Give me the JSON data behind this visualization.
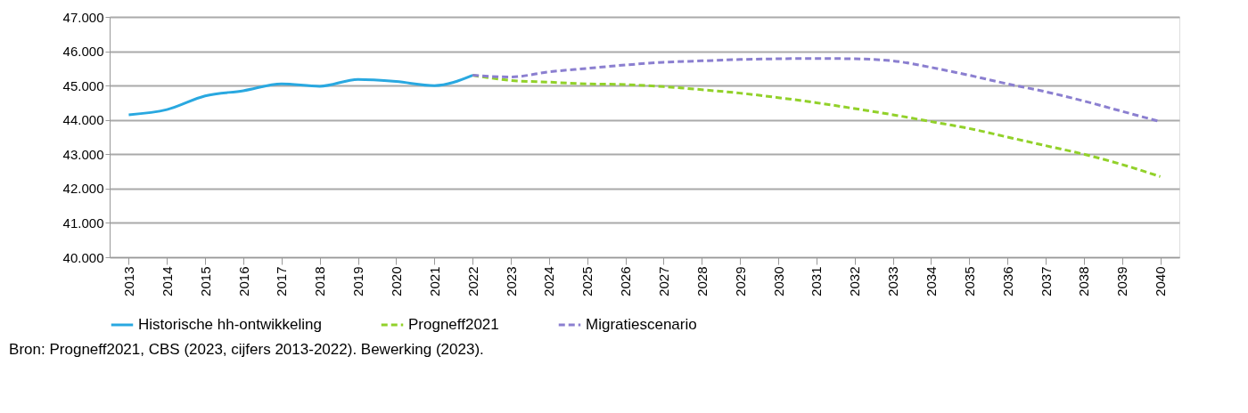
{
  "chart_data": {
    "type": "line",
    "categories": [
      "2013",
      "2014",
      "2015",
      "2016",
      "2017",
      "2018",
      "2019",
      "2020",
      "2021",
      "2022",
      "2023",
      "2024",
      "2025",
      "2026",
      "2027",
      "2028",
      "2029",
      "2030",
      "2031",
      "2032",
      "2033",
      "2034",
      "2035",
      "2036",
      "2037",
      "2038",
      "2039",
      "2040"
    ],
    "series": [
      {
        "name": "Historische hh-ontwikkeling",
        "color": "#29a8e0",
        "line_style": "solid",
        "values": [
          44150,
          44300,
          44700,
          44850,
          45050,
          44980,
          45180,
          45120,
          45000,
          45300,
          null,
          null,
          null,
          null,
          null,
          null,
          null,
          null,
          null,
          null,
          null,
          null,
          null,
          null,
          null,
          null,
          null,
          null
        ]
      },
      {
        "name": "Progneff2021",
        "color": "#92d12a",
        "line_style": "dashed",
        "values": [
          null,
          null,
          null,
          null,
          null,
          null,
          null,
          null,
          null,
          45300,
          45150,
          45100,
          45050,
          45030,
          44970,
          44880,
          44780,
          44650,
          44500,
          44330,
          44150,
          43950,
          43750,
          43500,
          43250,
          43000,
          42700,
          42350
        ]
      },
      {
        "name": "Migratiescenario",
        "color": "#8b7fd0",
        "line_style": "dashed",
        "values": [
          null,
          null,
          null,
          null,
          null,
          null,
          null,
          null,
          null,
          45300,
          45250,
          45400,
          45500,
          45600,
          45680,
          45720,
          45760,
          45780,
          45790,
          45780,
          45720,
          45530,
          45300,
          45050,
          44820,
          44550,
          44250,
          43950
        ]
      }
    ],
    "ylim": [
      40000,
      47000
    ],
    "yticks": [
      {
        "value": 40000,
        "label": "40.000"
      },
      {
        "value": 41000,
        "label": "41.000"
      },
      {
        "value": 42000,
        "label": "42.000"
      },
      {
        "value": 43000,
        "label": "43.000"
      },
      {
        "value": 44000,
        "label": "44.000"
      },
      {
        "value": 45000,
        "label": "45.000"
      },
      {
        "value": 46000,
        "label": "46.000"
      },
      {
        "value": 47000,
        "label": "47.000"
      }
    ],
    "grid": "y",
    "legend": "bottom",
    "marker": "none",
    "annotations": [
      "Bron: Progneff2021, CBS (2023, cijfers 2013-2022). Bewerking (2023)."
    ]
  }
}
